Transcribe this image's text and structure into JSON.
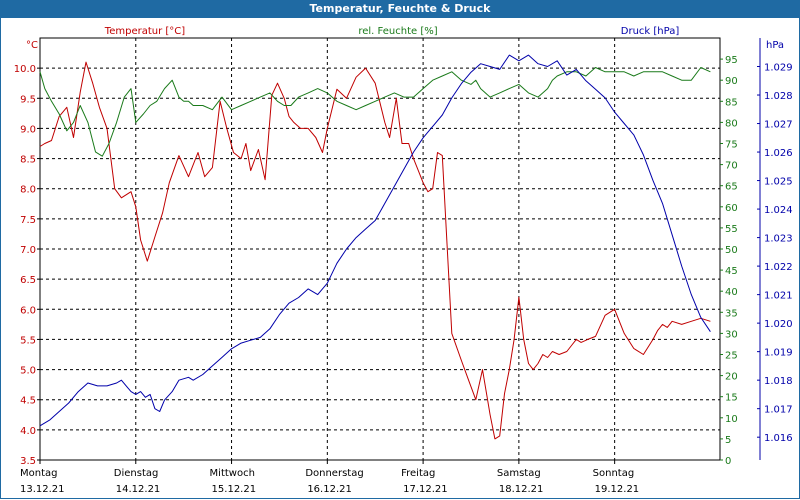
{
  "title": "Temperatur, Feuchte & Druck",
  "chart_data": {
    "type": "line",
    "title": "Temperatur, Feuchte & Druck",
    "days": [
      {
        "name": "Montag",
        "date": "13.12.21"
      },
      {
        "name": "Dienstag",
        "date": "14.12.21"
      },
      {
        "name": "Mittwoch",
        "date": "15.12.21"
      },
      {
        "name": "Donnerstag",
        "date": "16.12.21"
      },
      {
        "name": "Freitag",
        "date": "17.12.21"
      },
      {
        "name": "Samstag",
        "date": "18.12.21"
      },
      {
        "name": "Sonntag",
        "date": "19.12.21"
      }
    ],
    "x_unit": "days since 13.12.21 00:00",
    "xlim": [
      0,
      7.1
    ],
    "axes": {
      "temperature": {
        "label": "Temperatur [°C]",
        "unit_label": "°C",
        "color": "#c00000",
        "ylim": [
          3.5,
          10.5
        ],
        "ticks": [
          "3.5",
          "4.0",
          "4.5",
          "5.0",
          "5.5",
          "6.0",
          "6.5",
          "7.0",
          "7.5",
          "8.0",
          "8.5",
          "9.0",
          "9.5",
          "10.0"
        ]
      },
      "humidity": {
        "label": "rel. Feuchte [%]",
        "unit_label": "%",
        "color": "#1a7a1a",
        "ylim": [
          0,
          100
        ],
        "ticks": [
          "0",
          "5",
          "10",
          "15",
          "20",
          "25",
          "30",
          "35",
          "40",
          "45",
          "50",
          "55",
          "60",
          "65",
          "70",
          "75",
          "80",
          "85",
          "90",
          "95"
        ]
      },
      "pressure": {
        "label": "Druck [hPa]",
        "unit_label": "hPa",
        "color": "#0000aa",
        "ylim": [
          1015.2,
          1030.0
        ],
        "ticks": [
          "1.016",
          "1.017",
          "1.018",
          "1.019",
          "1.020",
          "1.021",
          "1.022",
          "1.023",
          "1.024",
          "1.025",
          "1.026",
          "1.027",
          "1.028",
          "1.029"
        ]
      }
    },
    "series": [
      {
        "name": "Temperatur [°C]",
        "axis": "temperature",
        "color": "#c00000",
        "x": [
          0,
          0.05,
          0.12,
          0.2,
          0.28,
          0.35,
          0.42,
          0.48,
          0.55,
          0.62,
          0.7,
          0.78,
          0.85,
          0.95,
          1.0,
          1.05,
          1.12,
          1.2,
          1.28,
          1.35,
          1.45,
          1.55,
          1.65,
          1.72,
          1.8,
          1.88,
          1.95,
          2.02,
          2.1,
          2.15,
          2.2,
          2.28,
          2.35,
          2.42,
          2.48,
          2.55,
          2.6,
          2.65,
          2.72,
          2.8,
          2.88,
          2.95,
          3.0,
          3.1,
          3.2,
          3.3,
          3.4,
          3.5,
          3.6,
          3.65,
          3.72,
          3.78,
          3.85,
          3.9,
          3.95,
          4.0,
          4.05,
          4.1,
          4.15,
          4.2,
          4.3,
          4.4,
          4.48,
          4.55,
          4.62,
          4.7,
          4.75,
          4.8,
          4.85,
          4.9,
          4.95,
          5.0,
          5.05,
          5.1,
          5.15,
          5.2,
          5.25,
          5.3,
          5.35,
          5.42,
          5.5,
          5.55,
          5.6,
          5.65,
          5.72,
          5.8,
          5.9,
          6.0,
          6.1,
          6.2,
          6.3,
          6.4,
          6.45,
          6.5,
          6.55,
          6.6,
          6.7,
          6.8,
          6.9,
          7.0
        ],
        "values": [
          8.7,
          8.75,
          8.8,
          9.2,
          9.35,
          8.85,
          9.6,
          10.1,
          9.75,
          9.35,
          9.0,
          8.0,
          7.85,
          7.95,
          7.7,
          7.15,
          6.8,
          7.2,
          7.6,
          8.1,
          8.55,
          8.2,
          8.6,
          8.2,
          8.35,
          9.45,
          9.0,
          8.6,
          8.5,
          8.75,
          8.3,
          8.65,
          8.15,
          9.55,
          9.75,
          9.5,
          9.2,
          9.1,
          9.0,
          9.0,
          8.85,
          8.6,
          9.0,
          9.65,
          9.5,
          9.85,
          10.0,
          9.75,
          9.1,
          8.85,
          9.5,
          8.75,
          8.75,
          8.5,
          8.3,
          8.1,
          7.95,
          8.0,
          8.6,
          8.55,
          5.6,
          5.15,
          4.8,
          4.5,
          5.0,
          4.25,
          3.85,
          3.9,
          4.6,
          5.0,
          5.5,
          6.2,
          5.5,
          5.1,
          5.0,
          5.1,
          5.25,
          5.2,
          5.3,
          5.25,
          5.3,
          5.4,
          5.5,
          5.45,
          5.5,
          5.55,
          5.9,
          6.0,
          5.6,
          5.35,
          5.25,
          5.5,
          5.65,
          5.75,
          5.7,
          5.8,
          5.75,
          5.8,
          5.85,
          5.8
        ]
      },
      {
        "name": "rel. Feuchte [%]",
        "axis": "humidity",
        "color": "#1a7a1a",
        "x": [
          0,
          0.05,
          0.12,
          0.2,
          0.28,
          0.35,
          0.42,
          0.5,
          0.58,
          0.65,
          0.72,
          0.8,
          0.88,
          0.95,
          1.0,
          1.08,
          1.15,
          1.22,
          1.3,
          1.38,
          1.45,
          1.5,
          1.55,
          1.6,
          1.7,
          1.8,
          1.9,
          2.0,
          2.1,
          2.2,
          2.3,
          2.4,
          2.48,
          2.55,
          2.62,
          2.7,
          2.8,
          2.9,
          3.0,
          3.1,
          3.2,
          3.3,
          3.4,
          3.5,
          3.6,
          3.7,
          3.8,
          3.9,
          4.0,
          4.1,
          4.2,
          4.3,
          4.4,
          4.5,
          4.55,
          4.6,
          4.7,
          4.8,
          4.9,
          5.0,
          5.1,
          5.2,
          5.3,
          5.35,
          5.4,
          5.5,
          5.6,
          5.7,
          5.8,
          5.9,
          6.0,
          6.1,
          6.2,
          6.3,
          6.4,
          6.5,
          6.6,
          6.7,
          6.8,
          6.9,
          7.0
        ],
        "values": [
          92,
          88,
          85,
          82,
          78,
          80,
          84,
          80,
          73,
          72,
          75,
          80,
          86,
          88,
          80,
          82,
          84,
          85,
          88,
          90,
          86,
          85,
          85,
          84,
          84,
          83,
          86,
          83,
          84,
          85,
          86,
          87,
          85,
          84,
          84,
          86,
          87,
          88,
          87,
          85,
          84,
          83,
          84,
          85,
          86,
          87,
          86,
          86,
          88,
          90,
          91,
          92,
          90,
          89,
          90,
          88,
          86,
          87,
          88,
          89,
          87,
          86,
          88,
          90,
          91,
          92,
          92,
          91,
          93,
          92,
          92,
          92,
          91,
          92,
          92,
          92,
          91,
          90,
          90,
          93,
          92
        ]
      },
      {
        "name": "Druck [hPa]",
        "axis": "pressure",
        "color": "#0000aa",
        "x": [
          0,
          0.1,
          0.2,
          0.3,
          0.4,
          0.5,
          0.6,
          0.7,
          0.8,
          0.85,
          0.9,
          0.95,
          1.0,
          1.05,
          1.1,
          1.15,
          1.2,
          1.25,
          1.3,
          1.38,
          1.45,
          1.55,
          1.6,
          1.7,
          1.8,
          1.9,
          2.0,
          2.1,
          2.2,
          2.3,
          2.4,
          2.5,
          2.6,
          2.7,
          2.8,
          2.9,
          3.0,
          3.1,
          3.2,
          3.3,
          3.4,
          3.5,
          3.6,
          3.7,
          3.8,
          3.9,
          4.0,
          4.1,
          4.2,
          4.3,
          4.4,
          4.5,
          4.6,
          4.7,
          4.8,
          4.9,
          5.0,
          5.1,
          5.2,
          5.3,
          5.4,
          5.5,
          5.6,
          5.7,
          5.8,
          5.9,
          6.0,
          6.1,
          6.2,
          6.3,
          6.4,
          6.5,
          6.6,
          6.7,
          6.8,
          6.9,
          7.0
        ],
        "values": [
          1016.4,
          1016.6,
          1016.9,
          1017.2,
          1017.6,
          1017.9,
          1017.8,
          1017.8,
          1017.9,
          1018.0,
          1017.8,
          1017.6,
          1017.5,
          1017.6,
          1017.4,
          1017.5,
          1017.0,
          1016.9,
          1017.3,
          1017.6,
          1018.0,
          1018.1,
          1018.0,
          1018.2,
          1018.5,
          1018.8,
          1019.1,
          1019.3,
          1019.4,
          1019.5,
          1019.8,
          1020.3,
          1020.7,
          1020.9,
          1021.2,
          1021.0,
          1021.4,
          1022.1,
          1022.6,
          1023.0,
          1023.3,
          1023.6,
          1024.2,
          1024.8,
          1025.4,
          1026.0,
          1026.5,
          1026.9,
          1027.3,
          1027.9,
          1028.4,
          1028.8,
          1029.1,
          1029.0,
          1028.9,
          1029.4,
          1029.2,
          1029.4,
          1029.1,
          1029.0,
          1029.2,
          1028.7,
          1028.9,
          1028.5,
          1028.2,
          1027.9,
          1027.4,
          1027.0,
          1026.6,
          1025.9,
          1025.0,
          1024.2,
          1023.1,
          1022.0,
          1021.0,
          1020.2,
          1019.7
        ]
      }
    ]
  }
}
